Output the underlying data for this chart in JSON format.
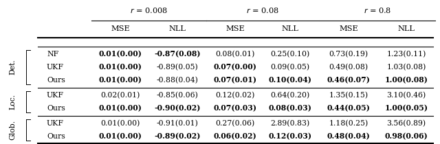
{
  "col_headers_r": [
    "r = 0.008",
    "r = 0.08",
    "r = 0.8"
  ],
  "col_headers_metric": [
    "MSE",
    "NLL",
    "MSE",
    "NLL",
    "MSE",
    "NLL"
  ],
  "row_groups": [
    "Det.",
    "Loc.",
    "Glob."
  ],
  "row_labels": [
    [
      "NF",
      "UKF",
      "Ours"
    ],
    [
      "UKF",
      "Ours"
    ],
    [
      "UKF",
      "Ours"
    ]
  ],
  "data": {
    "Det.": {
      "NF": [
        "0.01(0.00)",
        "-0.87(0.08)",
        "0.08(0.01)",
        "0.25(0.10)",
        "0.73(0.19)",
        "1.23(0.11)"
      ],
      "UKF": [
        "0.01(0.00)",
        "-0.89(0.05)",
        "0.07(0.00)",
        "0.09(0.05)",
        "0.49(0.08)",
        "1.03(0.08)"
      ],
      "Ours": [
        "0.01(0.00)",
        "-0.88(0.04)",
        "0.07(0.01)",
        "0.10(0.04)",
        "0.46(0.07)",
        "1.00(0.08)"
      ]
    },
    "Loc.": {
      "UKF": [
        "0.02(0.01)",
        "-0.85(0.06)",
        "0.12(0.02)",
        "0.64(0.20)",
        "1.35(0.15)",
        "3.10(0.46)"
      ],
      "Ours": [
        "0.01(0.00)",
        "-0.90(0.02)",
        "0.07(0.03)",
        "0.08(0.03)",
        "0.44(0.05)",
        "1.00(0.05)"
      ]
    },
    "Glob.": {
      "UKF": [
        "0.01(0.00)",
        "-0.91(0.01)",
        "0.27(0.06)",
        "2.89(0.83)",
        "1.18(0.25)",
        "3.56(0.89)"
      ],
      "Ours": [
        "0.01(0.00)",
        "-0.89(0.02)",
        "0.06(0.02)",
        "0.12(0.03)",
        "0.48(0.04)",
        "0.98(0.06)"
      ]
    }
  },
  "bold_cells": {
    "Det.": {
      "NF": [
        true,
        true,
        false,
        false,
        false,
        false
      ],
      "UKF": [
        true,
        false,
        true,
        false,
        false,
        false
      ],
      "Ours": [
        true,
        false,
        true,
        true,
        true,
        true
      ]
    },
    "Loc.": {
      "UKF": [
        false,
        false,
        false,
        false,
        false,
        false
      ],
      "Ours": [
        true,
        true,
        true,
        true,
        true,
        true
      ]
    },
    "Glob.": {
      "UKF": [
        false,
        false,
        false,
        false,
        false,
        false
      ],
      "Ours": [
        true,
        true,
        true,
        true,
        true,
        true
      ]
    }
  },
  "background_color": "#ffffff",
  "font_size": 7.8,
  "header_font_size": 8.2
}
